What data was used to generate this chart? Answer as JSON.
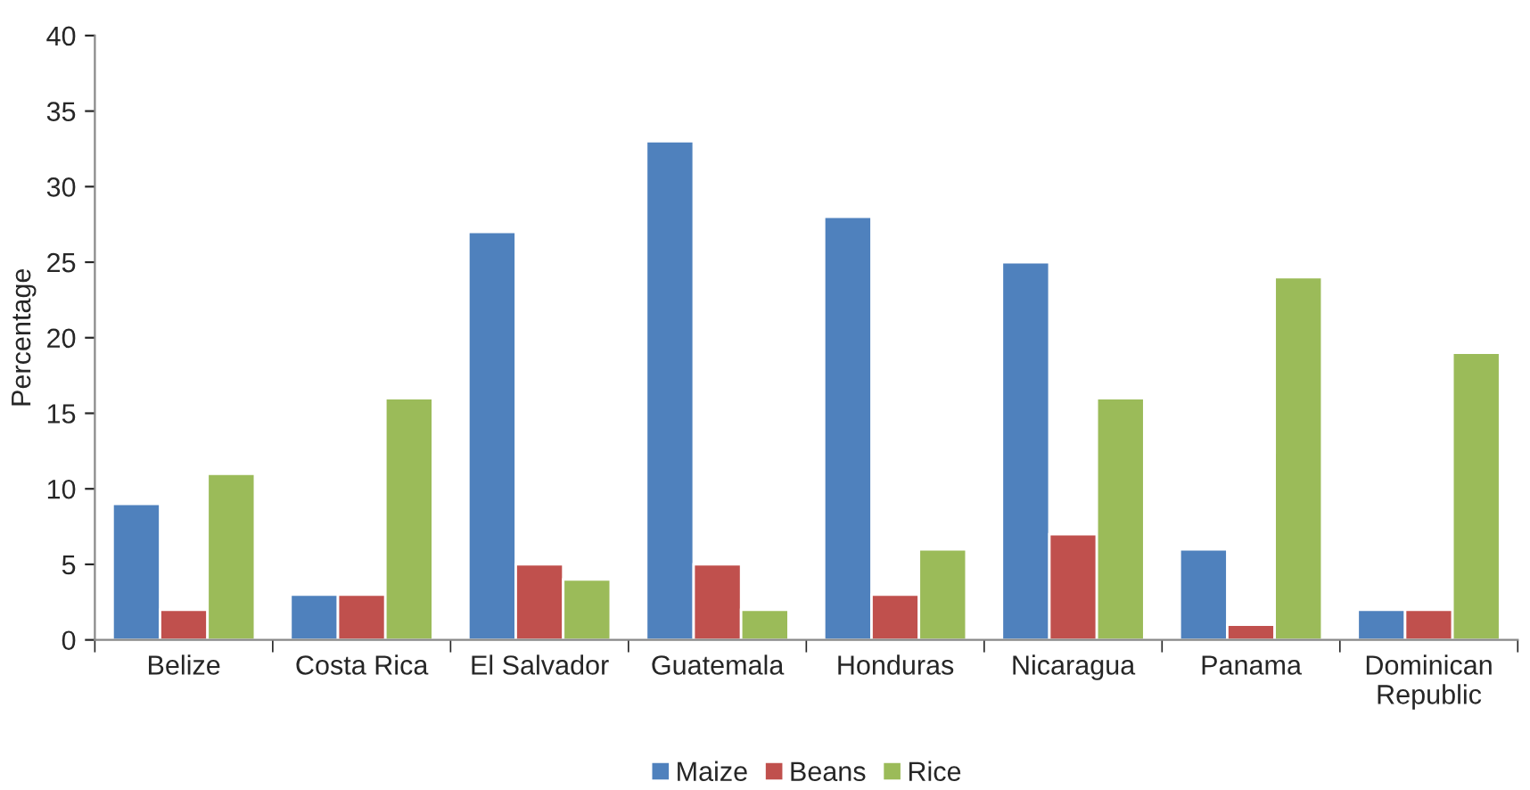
{
  "chart_data": {
    "type": "bar",
    "ylabel": "Percentage",
    "categories": [
      "Belize",
      "Costa Rica",
      "El Salvador",
      "Guatemala",
      "Honduras",
      "Nicaragua",
      "Panama",
      "Dominican\nRepublic"
    ],
    "series": [
      {
        "name": "Maize",
        "color": "#4f81bd",
        "values": [
          9,
          3,
          27,
          33,
          28,
          25,
          6,
          2
        ]
      },
      {
        "name": "Beans",
        "color": "#c0504d",
        "values": [
          2,
          3,
          5,
          5,
          3,
          7,
          1,
          2
        ]
      },
      {
        "name": "Rice",
        "color": "#9bbb59",
        "values": [
          11,
          16,
          4,
          2,
          6,
          16,
          24,
          19
        ]
      }
    ],
    "ylim": [
      0,
      40
    ],
    "yticks": [
      0,
      5,
      10,
      15,
      20,
      25,
      30,
      35,
      40
    ],
    "grid": false,
    "legend": "bottom"
  }
}
